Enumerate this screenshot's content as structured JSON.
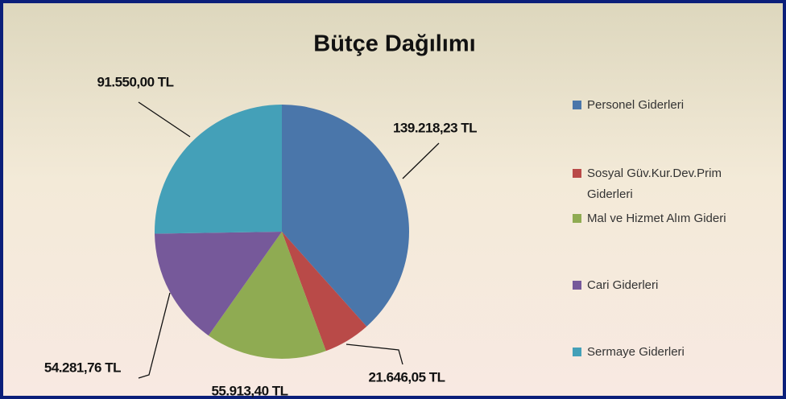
{
  "chart_data": {
    "type": "pie",
    "title": "Bütçe Dağılımı",
    "categories": [
      "Personel Giderleri",
      "Sosyal Güv.Kur.Dev.Prim Giderleri",
      "Mal ve Hizmet Alım Gideri",
      "Cari Giderleri",
      "Sermaye Giderleri"
    ],
    "values": [
      139218.23,
      21646.05,
      55913.4,
      54281.76,
      91550.0
    ],
    "value_labels": [
      "139.218,23 TL",
      "21.646,05 TL",
      "55.913,40 TL",
      "54.281,76 TL",
      "91.550,00 TL"
    ],
    "colors": [
      "#4a76aa",
      "#b94a48",
      "#8fab52",
      "#76599a",
      "#44a0b8"
    ],
    "legend": "right"
  }
}
